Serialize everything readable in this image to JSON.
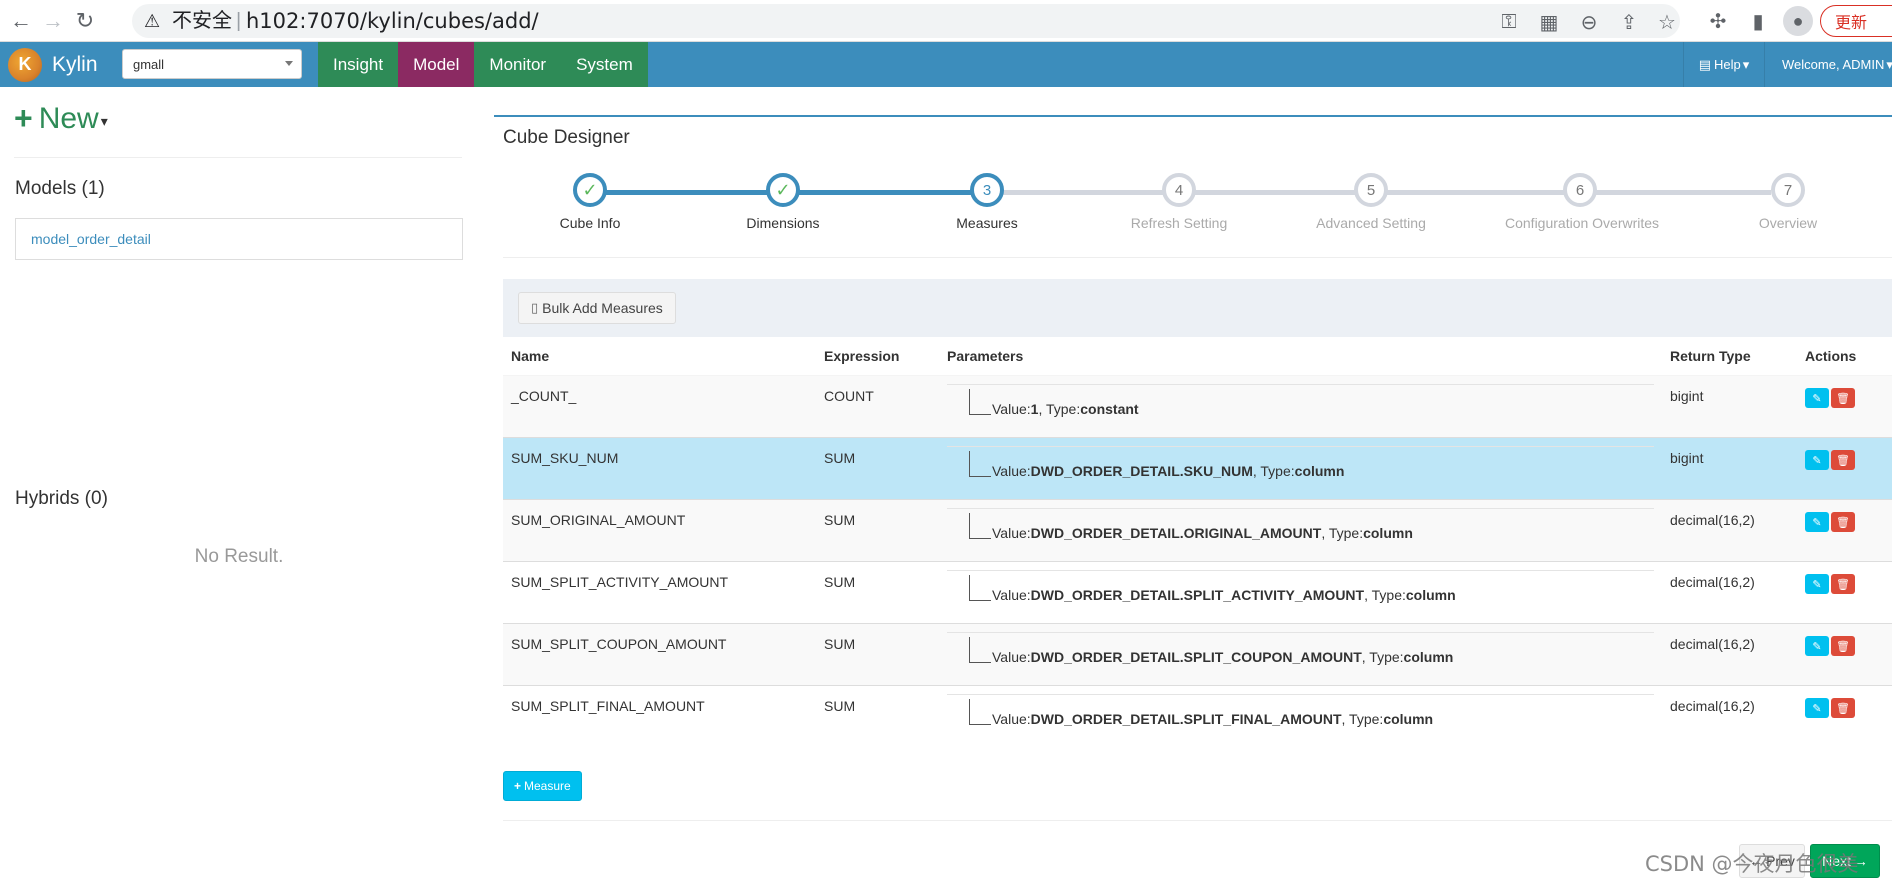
{
  "browser": {
    "insecure_label": "不安全",
    "separator": "|",
    "url": "h102:7070/kylin/cubes/add/",
    "update_label": "更新"
  },
  "header": {
    "app_name": "Kylin",
    "project": "gmall",
    "nav": [
      "Insight",
      "Model",
      "Monitor",
      "System"
    ],
    "active_nav": "Model",
    "help_label": "Help",
    "welcome": "Welcome, ADMIN"
  },
  "sidebar": {
    "new_label": "New",
    "models_heading": "Models (1)",
    "models": [
      "model_order_detail"
    ],
    "hybrids_heading": "Hybrids (0)",
    "no_result": "No Result."
  },
  "designer": {
    "title": "Cube Designer",
    "steps": [
      {
        "num": "1",
        "label": "Cube Info",
        "state": "done"
      },
      {
        "num": "2",
        "label": "Dimensions",
        "state": "done"
      },
      {
        "num": "3",
        "label": "Measures",
        "state": "current"
      },
      {
        "num": "4",
        "label": "Refresh Setting",
        "state": "todo"
      },
      {
        "num": "5",
        "label": "Advanced Setting",
        "state": "todo"
      },
      {
        "num": "6",
        "label": "Configuration Overwrites",
        "state": "todo"
      },
      {
        "num": "7",
        "label": "Overview",
        "state": "todo"
      }
    ],
    "bulk_add_label": "Bulk Add Measures",
    "columns": [
      "Name",
      "Expression",
      "Parameters",
      "Return Type",
      "Actions"
    ],
    "measures": [
      {
        "name": "_COUNT_",
        "expression": "COUNT",
        "value": "1",
        "type": "constant",
        "return_type": "bigint"
      },
      {
        "name": "SUM_SKU_NUM",
        "expression": "SUM",
        "value": "DWD_ORDER_DETAIL.SKU_NUM",
        "type": "column",
        "return_type": "bigint"
      },
      {
        "name": "SUM_ORIGINAL_AMOUNT",
        "expression": "SUM",
        "value": "DWD_ORDER_DETAIL.ORIGINAL_AMOUNT",
        "type": "column",
        "return_type": "decimal(16,2)"
      },
      {
        "name": "SUM_SPLIT_ACTIVITY_AMOUNT",
        "expression": "SUM",
        "value": "DWD_ORDER_DETAIL.SPLIT_ACTIVITY_AMOUNT",
        "type": "column",
        "return_type": "decimal(16,2)"
      },
      {
        "name": "SUM_SPLIT_COUPON_AMOUNT",
        "expression": "SUM",
        "value": "DWD_ORDER_DETAIL.SPLIT_COUPON_AMOUNT",
        "type": "column",
        "return_type": "decimal(16,2)"
      },
      {
        "name": "SUM_SPLIT_FINAL_AMOUNT",
        "expression": "SUM",
        "value": "DWD_ORDER_DETAIL.SPLIT_FINAL_AMOUNT",
        "type": "column",
        "return_type": "decimal(16,2)"
      }
    ],
    "highlighted_row": 1,
    "param_value_prefix": "Value:",
    "param_type_prefix": ", Type:",
    "add_measure_label": "Measure",
    "prev_label": "Prev",
    "next_label": "Next"
  },
  "watermark": "CSDN @今夜月色很美",
  "colors": {
    "header_bg": "#3c8dbc",
    "nav_bg": "#2e8b57",
    "nav_active_bg": "#8b2a62",
    "info": "#00c0ef",
    "danger": "#dd4b39",
    "success": "#00a65a",
    "row_highlight": "#bde6f7"
  }
}
